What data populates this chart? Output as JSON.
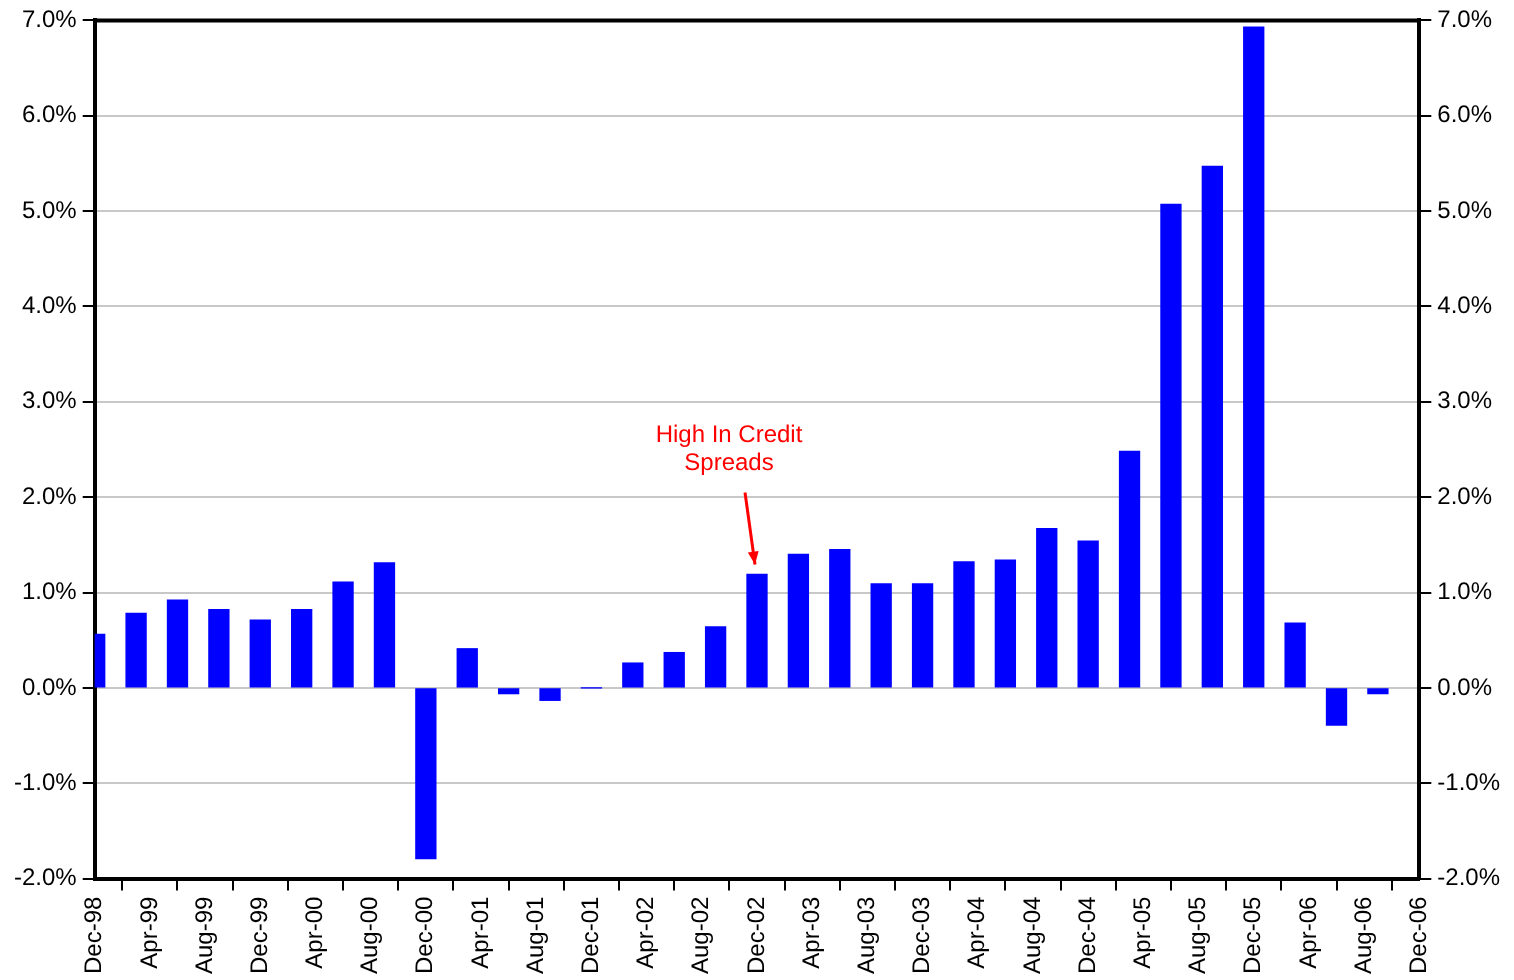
{
  "chart_data": {
    "type": "bar",
    "x": [
      "1998-12",
      "1999-03",
      "1999-06",
      "1999-09",
      "1999-12",
      "2000-03",
      "2000-06",
      "2000-09",
      "2000-12",
      "2001-03",
      "2001-06",
      "2001-09",
      "2001-12",
      "2002-03",
      "2002-06",
      "2002-09",
      "2002-12",
      "2003-03",
      "2003-06",
      "2003-09",
      "2003-12",
      "2004-03",
      "2004-06",
      "2004-09",
      "2004-12",
      "2005-03",
      "2005-06",
      "2005-09",
      "2005-12",
      "2006-03",
      "2006-06",
      "2006-09"
    ],
    "series": [
      {
        "color": "#0000ff",
        "values": [
          0.56,
          0.78,
          0.92,
          0.82,
          0.71,
          0.82,
          1.11,
          1.31,
          -1.79,
          0.41,
          -0.06,
          -0.13,
          0,
          0.26,
          0.37,
          0.64,
          1.19,
          1.4,
          1.45,
          1.09,
          1.09,
          1.32,
          1.34,
          1.67,
          1.54,
          2.48,
          5.07,
          5.47,
          6.93,
          0.68,
          -0.39,
          -0.06
        ]
      }
    ],
    "xlim": [
      "1998-12",
      "2006-12"
    ],
    "xticks": [
      {
        "value": "1998-12",
        "label": "Dec-98"
      },
      {
        "value": "1999-04",
        "label": "Apr-99"
      },
      {
        "value": "1999-08",
        "label": "Aug-99"
      },
      {
        "value": "1999-12",
        "label": "Dec-99"
      },
      {
        "value": "2000-04",
        "label": "Apr-00"
      },
      {
        "value": "2000-08",
        "label": "Aug-00"
      },
      {
        "value": "2000-12",
        "label": "Dec-00"
      },
      {
        "value": "2001-04",
        "label": "Apr-01"
      },
      {
        "value": "2001-08",
        "label": "Aug-01"
      },
      {
        "value": "2001-12",
        "label": "Dec-01"
      },
      {
        "value": "2002-04",
        "label": "Apr-02"
      },
      {
        "value": "2002-08",
        "label": "Aug-02"
      },
      {
        "value": "2002-12",
        "label": "Dec-02"
      },
      {
        "value": "2003-04",
        "label": "Apr-03"
      },
      {
        "value": "2003-08",
        "label": "Aug-03"
      },
      {
        "value": "2003-12",
        "label": "Dec-03"
      },
      {
        "value": "2004-04",
        "label": "Apr-04"
      },
      {
        "value": "2004-08",
        "label": "Aug-04"
      },
      {
        "value": "2004-12",
        "label": "Dec-04"
      },
      {
        "value": "2005-04",
        "label": "Apr-05"
      },
      {
        "value": "2005-08",
        "label": "Aug-05"
      },
      {
        "value": "2005-12",
        "label": "Dec-05"
      },
      {
        "value": "2006-04",
        "label": "Apr-06"
      },
      {
        "value": "2006-08",
        "label": "Aug-06"
      },
      {
        "value": "2006-12",
        "label": "Dec-06"
      }
    ],
    "ylim": [
      -2,
      7
    ],
    "yticks": [
      {
        "value": -2,
        "label": "-2.0%"
      },
      {
        "value": -1,
        "label": "-1.0%"
      },
      {
        "value": 0,
        "label": "0.0%"
      },
      {
        "value": 1,
        "label": "1.0%"
      },
      {
        "value": 2,
        "label": "2.0%"
      },
      {
        "value": 3,
        "label": "3.0%"
      },
      {
        "value": 4,
        "label": "4.0%"
      },
      {
        "value": 5,
        "label": "5.0%"
      },
      {
        "value": 6,
        "label": "6.0%"
      },
      {
        "value": 7,
        "label": "7.0%"
      }
    ],
    "y2lim": [
      -2,
      7
    ],
    "y2ticks": [
      {
        "value": -2,
        "label": "-2.0%"
      },
      {
        "value": -1,
        "label": "-1.0%"
      },
      {
        "value": 0,
        "label": "0.0%"
      },
      {
        "value": 1,
        "label": "1.0%"
      },
      {
        "value": 2,
        "label": "2.0%"
      },
      {
        "value": 3,
        "label": "3.0%"
      },
      {
        "value": 4,
        "label": "4.0%"
      },
      {
        "value": 5,
        "label": "5.0%"
      },
      {
        "value": 6,
        "label": "6.0%"
      },
      {
        "value": 7,
        "label": "7.0%"
      }
    ],
    "grid": "y",
    "legend": false,
    "annotations": [
      {
        "text": "High In Credit Spreads",
        "x": "2002-12",
        "y": 1.19
      }
    ]
  }
}
